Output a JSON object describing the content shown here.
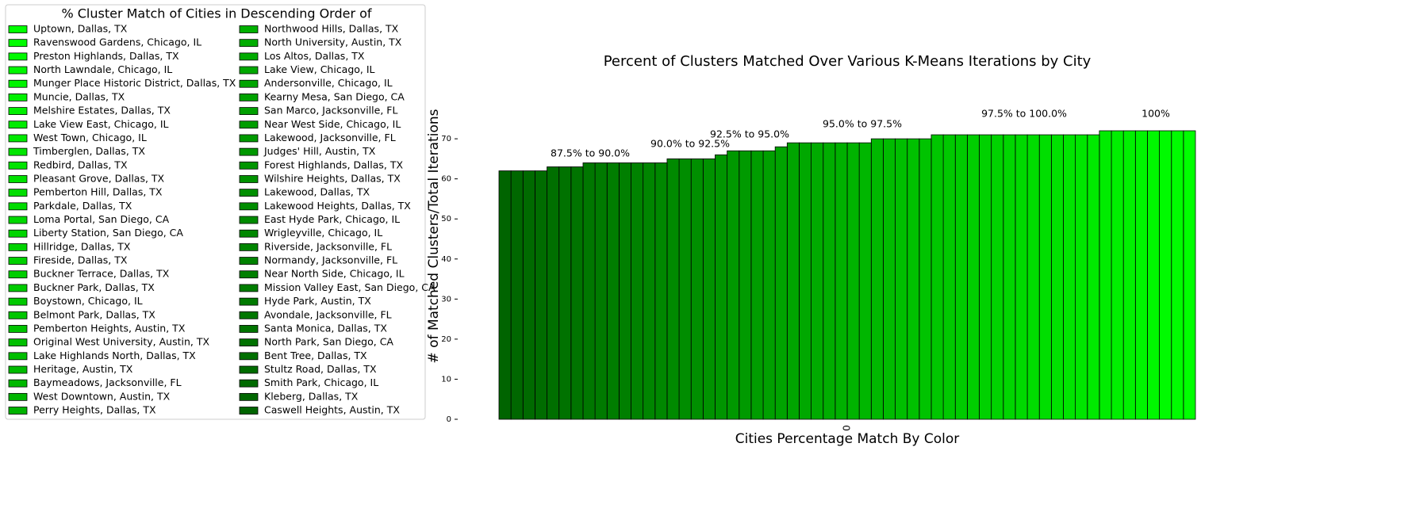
{
  "chart_data": {
    "type": "bar",
    "title": "Percent of Clusters Matched Over Various K-Means Iterations by City",
    "x_label": "Cities Percentage Match By Color",
    "y_label": "# of Matched Clusters/Total Iterations",
    "legend_title": "% Cluster Match of Cities in Descending Order of",
    "annotations": [
      "87.5% to 90.0%",
      "90.0% to 92.5%",
      "92.5% to 95.0%",
      "95.0% to 97.5%",
      "97.5% to 100.0%",
      "100%"
    ],
    "categories": [
      "Uptown, Dallas, TX",
      "Ravenswood Gardens, Chicago, IL",
      "Preston Highlands, Dallas, TX",
      "North Lawndale, Chicago, IL",
      "Munger Place Historic District, Dallas, TX",
      "Muncie, Dallas, TX",
      "Melshire Estates, Dallas, TX",
      "Lake View East, Chicago, IL",
      "West Town, Chicago, IL",
      "Timberglen, Dallas, TX",
      "Redbird, Dallas, TX",
      "Pleasant Grove, Dallas, TX",
      "Pemberton Hill, Dallas, TX",
      "Parkdale, Dallas, TX",
      "Loma Portal, San Diego, CA",
      "Liberty Station, San Diego, CA",
      "Hillridge, Dallas, TX",
      "Fireside, Dallas, TX",
      "Buckner Terrace, Dallas, TX",
      "Buckner Park, Dallas, TX",
      "Boystown, Chicago, IL",
      "Belmont Park, Dallas, TX",
      "Pemberton Heights, Austin, TX",
      "Original West University, Austin, TX",
      "Lake Highlands North, Dallas, TX",
      "Heritage, Austin, TX",
      "Baymeadows, Jacksonville, FL",
      "West Downtown, Austin, TX",
      "Perry Heights, Dallas, TX",
      "Northwood Hills, Dallas, TX",
      "North University, Austin, TX",
      "Los Altos, Dallas, TX",
      "Lake View, Chicago, IL",
      "Andersonville, Chicago, IL",
      "Kearny Mesa, San Diego, CA",
      "San Marco, Jacksonville, FL",
      "Near West Side, Chicago, IL",
      "Lakewood, Jacksonville, FL",
      "Judges' Hill, Austin, TX",
      "Forest Highlands, Dallas, TX",
      "Wilshire Heights, Dallas, TX",
      "Lakewood, Dallas, TX",
      "Lakewood Heights, Dallas, TX",
      "East Hyde Park, Chicago, IL",
      "Wrigleyville, Chicago, IL",
      "Riverside, Jacksonville, FL",
      "Normandy, Jacksonville, FL",
      "Near North Side, Chicago, IL",
      "Mission Valley East, San Diego, CA",
      "Hyde Park, Austin, TX",
      "Avondale, Jacksonville, FL",
      "Santa Monica, Dallas, TX",
      "North Park, San Diego, CA",
      "Bent Tree, Dallas, TX",
      "Stultz Road, Dallas, TX",
      "Smith Park, Chicago, IL",
      "Kleberg, Dallas, TX",
      "Caswell Heights, Austin, TX"
    ],
    "values": [
      72,
      72,
      72,
      72,
      72,
      72,
      72,
      72,
      71,
      71,
      71,
      71,
      71,
      71,
      71,
      71,
      71,
      71,
      71,
      71,
      71,
      71,
      70,
      70,
      70,
      70,
      70,
      69,
      69,
      69,
      69,
      69,
      69,
      69,
      68,
      67,
      67,
      67,
      67,
      66,
      65,
      65,
      65,
      65,
      64,
      64,
      64,
      64,
      64,
      64,
      64,
      63,
      63,
      63,
      62,
      62,
      62,
      62
    ],
    "colors": [
      "#00ff00",
      "#00fc00",
      "#00fa00",
      "#00f700",
      "#00f400",
      "#00f100",
      "#00ef00",
      "#00ec00",
      "#00e900",
      "#00e600",
      "#00e400",
      "#00e100",
      "#00de00",
      "#00dc00",
      "#00d900",
      "#00d600",
      "#00d300",
      "#00d100",
      "#00ce00",
      "#00cb00",
      "#00c900",
      "#00c600",
      "#00c300",
      "#00c000",
      "#00be00",
      "#00bb00",
      "#00b800",
      "#00b600",
      "#00b300",
      "#00b000",
      "#00ad00",
      "#00ab00",
      "#00a800",
      "#00a500",
      "#00a300",
      "#00a000",
      "#009d00",
      "#009a00",
      "#009800",
      "#009500",
      "#009200",
      "#008f00",
      "#008d00",
      "#008a00",
      "#008700",
      "#008500",
      "#008200",
      "#007f00",
      "#007d00",
      "#007a00",
      "#007700",
      "#007400",
      "#007200",
      "#006f00",
      "#006c00",
      "#006a00",
      "#006700",
      "#006400"
    ],
    "ylim": [
      0,
      72
    ],
    "yticks": [
      0,
      10,
      20,
      30,
      40,
      50,
      60,
      70
    ],
    "xticks": [
      0
    ]
  }
}
